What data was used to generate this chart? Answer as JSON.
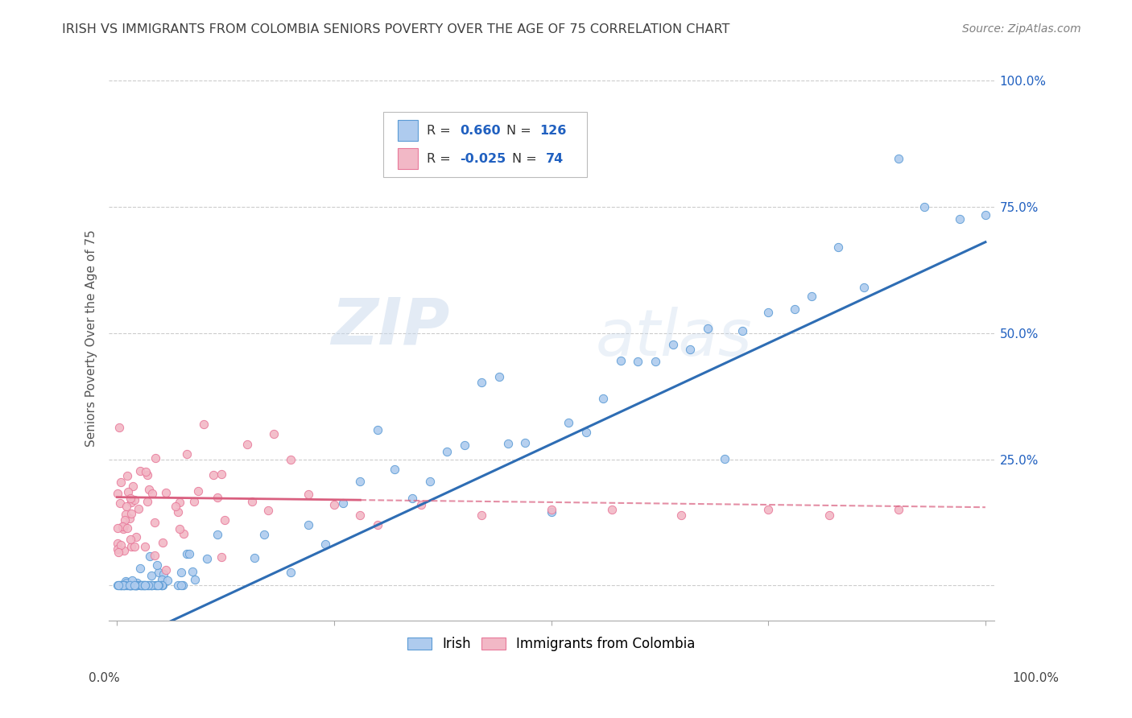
{
  "title": "IRISH VS IMMIGRANTS FROM COLOMBIA SENIORS POVERTY OVER THE AGE OF 75 CORRELATION CHART",
  "source": "Source: ZipAtlas.com",
  "ylabel": "Seniors Poverty Over the Age of 75",
  "legend_irish_R": "0.660",
  "legend_irish_N": "126",
  "legend_colombia_R": "-0.025",
  "legend_colombia_N": "74",
  "irish_color": "#aecbee",
  "colombia_color": "#f2b8c6",
  "irish_edge_color": "#5b9bd5",
  "colombia_edge_color": "#e8799a",
  "irish_line_color": "#2e6db4",
  "colombia_line_color": "#d95f7f",
  "title_color": "#404040",
  "source_color": "#808080",
  "legend_value_color": "#2060c0",
  "background_color": "#ffffff",
  "watermark_zip": "ZIP",
  "watermark_atlas": "atlas",
  "xlim": [
    -0.01,
    1.01
  ],
  "ylim": [
    -0.07,
    1.05
  ],
  "right_ytick_vals": [
    0.0,
    0.25,
    0.5,
    0.75,
    1.0
  ],
  "right_yticklabels": [
    "",
    "25.0%",
    "50.0%",
    "75.0%",
    "100.0%"
  ]
}
